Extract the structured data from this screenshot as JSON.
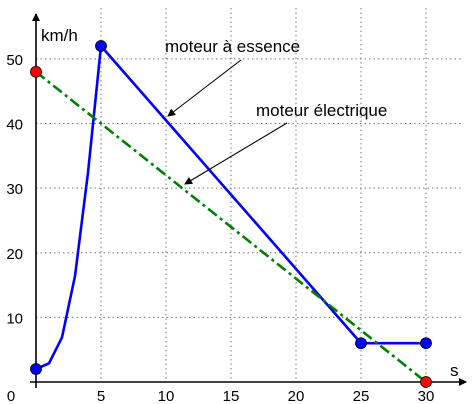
{
  "chart_data": {
    "type": "line",
    "xlabel": "s",
    "ylabel": "km/h",
    "xlim": [
      0,
      30
    ],
    "ylim": [
      0,
      52
    ],
    "x_ticks": [
      0,
      5,
      10,
      15,
      20,
      25,
      30
    ],
    "y_ticks": [
      10,
      20,
      30,
      40,
      50
    ],
    "grid": true,
    "grid_style": "dotted",
    "series": [
      {
        "name": "moteur à essence",
        "color": "#0000ff",
        "line_style": "solid",
        "segments": [
          {
            "kind": "curve",
            "x": [
              0,
              1,
              2,
              3,
              4,
              5
            ],
            "y": [
              2,
              2.9,
              6.9,
              16.4,
              32.4,
              52
            ]
          },
          {
            "kind": "line",
            "x": [
              5,
              25
            ],
            "y": [
              52,
              6
            ]
          },
          {
            "kind": "line",
            "x": [
              25,
              30
            ],
            "y": [
              6,
              6
            ]
          }
        ],
        "markers": [
          {
            "x": 0,
            "y": 2
          },
          {
            "x": 5,
            "y": 52
          },
          {
            "x": 25,
            "y": 6
          },
          {
            "x": 30,
            "y": 6
          }
        ],
        "marker_color": "#0000ff"
      },
      {
        "name": "moteur électrique",
        "color": "#008000",
        "line_style": "dash-dot",
        "x": [
          0,
          30
        ],
        "y": [
          48,
          0
        ],
        "markers": [
          {
            "x": 0,
            "y": 48
          },
          {
            "x": 30,
            "y": 0
          }
        ],
        "marker_color": "#ff0000"
      }
    ],
    "annotations": [
      {
        "text": "moteur à essence",
        "points_to_series": "moteur à essence"
      },
      {
        "text": "moteur électrique",
        "points_to_series": "moteur électrique"
      }
    ]
  }
}
